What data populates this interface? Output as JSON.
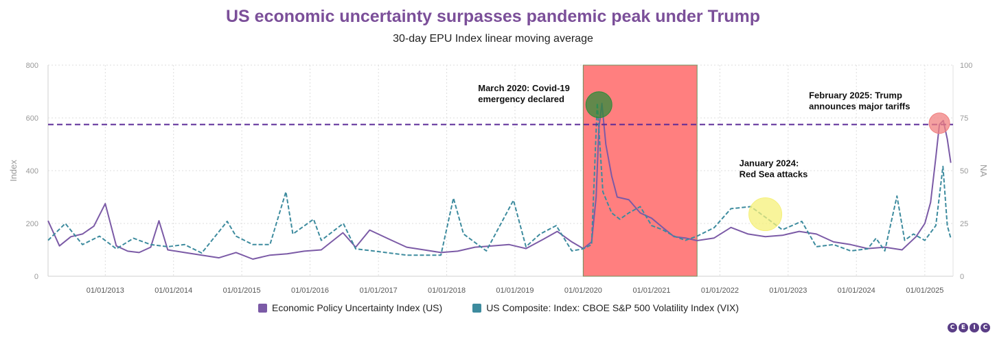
{
  "chart_data": {
    "type": "line",
    "title": "US economic uncertainty surpasses pandemic peak under Trump",
    "subtitle": "30-day EPU Index linear moving average",
    "ylabel": "Index",
    "y2label": "NA",
    "ylim": [
      0,
      800
    ],
    "y2lim": [
      0,
      100
    ],
    "yticks": [
      0,
      200,
      400,
      600,
      800
    ],
    "y2ticks": [
      0,
      25,
      50,
      75,
      100
    ],
    "xticks": [
      "01/01/2013",
      "01/01/2014",
      "01/01/2015",
      "01/01/2016",
      "01/01/2017",
      "01/01/2018",
      "01/01/2019",
      "01/01/2020",
      "01/01/2021",
      "01/01/2022",
      "01/01/2023",
      "01/01/2024",
      "01/01/2025"
    ],
    "grid": true,
    "legend_position": "bottom",
    "reference_line": {
      "value": 575,
      "color": "#5b2a96",
      "style": "dashed"
    },
    "shaded_period": {
      "start": "2020-01-01",
      "end": "2021-09-01",
      "color": "#ff7f7f"
    },
    "series": [
      {
        "name": "Economic Policy Uncertainty Index (US)",
        "axis": "left",
        "color": "#7b5aa6",
        "points": [
          [
            "2012-03-01",
            210
          ],
          [
            "2012-05-01",
            115
          ],
          [
            "2012-07-01",
            150
          ],
          [
            "2012-09-01",
            160
          ],
          [
            "2012-11-01",
            190
          ],
          [
            "2013-01-01",
            275
          ],
          [
            "2013-03-01",
            115
          ],
          [
            "2013-05-01",
            95
          ],
          [
            "2013-07-01",
            90
          ],
          [
            "2013-09-01",
            110
          ],
          [
            "2013-10-15",
            210
          ],
          [
            "2013-12-01",
            100
          ],
          [
            "2014-03-01",
            90
          ],
          [
            "2014-06-01",
            80
          ],
          [
            "2014-09-01",
            70
          ],
          [
            "2014-12-01",
            90
          ],
          [
            "2015-03-01",
            65
          ],
          [
            "2015-06-01",
            80
          ],
          [
            "2015-09-01",
            85
          ],
          [
            "2015-12-01",
            95
          ],
          [
            "2016-03-01",
            100
          ],
          [
            "2016-06-25",
            165
          ],
          [
            "2016-09-01",
            110
          ],
          [
            "2016-11-15",
            175
          ],
          [
            "2017-03-01",
            140
          ],
          [
            "2017-06-01",
            110
          ],
          [
            "2017-09-01",
            100
          ],
          [
            "2017-12-01",
            90
          ],
          [
            "2018-03-01",
            95
          ],
          [
            "2018-06-01",
            110
          ],
          [
            "2018-09-01",
            115
          ],
          [
            "2018-12-01",
            120
          ],
          [
            "2019-03-01",
            105
          ],
          [
            "2019-06-01",
            140
          ],
          [
            "2019-08-15",
            170
          ],
          [
            "2019-11-01",
            130
          ],
          [
            "2020-01-01",
            105
          ],
          [
            "2020-02-15",
            130
          ],
          [
            "2020-03-10",
            300
          ],
          [
            "2020-03-25",
            560
          ],
          [
            "2020-04-10",
            655
          ],
          [
            "2020-05-01",
            500
          ],
          [
            "2020-06-01",
            380
          ],
          [
            "2020-07-01",
            300
          ],
          [
            "2020-09-01",
            290
          ],
          [
            "2020-11-01",
            240
          ],
          [
            "2021-01-01",
            220
          ],
          [
            "2021-03-01",
            185
          ],
          [
            "2021-05-01",
            150
          ],
          [
            "2021-07-01",
            145
          ],
          [
            "2021-09-01",
            135
          ],
          [
            "2021-12-01",
            145
          ],
          [
            "2022-03-01",
            185
          ],
          [
            "2022-06-01",
            160
          ],
          [
            "2022-09-01",
            150
          ],
          [
            "2022-12-01",
            155
          ],
          [
            "2023-03-01",
            170
          ],
          [
            "2023-06-01",
            160
          ],
          [
            "2023-09-01",
            130
          ],
          [
            "2023-12-01",
            120
          ],
          [
            "2024-03-01",
            105
          ],
          [
            "2024-06-01",
            110
          ],
          [
            "2024-09-01",
            100
          ],
          [
            "2024-11-15",
            150
          ],
          [
            "2025-01-01",
            200
          ],
          [
            "2025-02-01",
            280
          ],
          [
            "2025-03-01",
            450
          ],
          [
            "2025-03-20",
            575
          ],
          [
            "2025-04-10",
            590
          ],
          [
            "2025-05-01",
            520
          ],
          [
            "2025-05-20",
            430
          ]
        ]
      },
      {
        "name": "US Composite: Index: CBOE S&P 500 Volatility Index (VIX)",
        "axis": "right",
        "color": "#3d8b9e",
        "points": [
          [
            "2012-03-01",
            17
          ],
          [
            "2012-06-01",
            25
          ],
          [
            "2012-09-01",
            15
          ],
          [
            "2012-12-01",
            19
          ],
          [
            "2013-03-01",
            13
          ],
          [
            "2013-06-01",
            18
          ],
          [
            "2013-09-01",
            15
          ],
          [
            "2013-12-01",
            14
          ],
          [
            "2014-03-01",
            15
          ],
          [
            "2014-06-01",
            11
          ],
          [
            "2014-10-15",
            26
          ],
          [
            "2014-12-01",
            19
          ],
          [
            "2015-03-01",
            15
          ],
          [
            "2015-06-01",
            15
          ],
          [
            "2015-08-25",
            40
          ],
          [
            "2015-10-01",
            20
          ],
          [
            "2016-01-20",
            27
          ],
          [
            "2016-03-01",
            17
          ],
          [
            "2016-06-27",
            25
          ],
          [
            "2016-09-01",
            13
          ],
          [
            "2016-12-01",
            12
          ],
          [
            "2017-03-01",
            11
          ],
          [
            "2017-06-01",
            10
          ],
          [
            "2017-09-01",
            10
          ],
          [
            "2017-12-01",
            10
          ],
          [
            "2018-02-06",
            37
          ],
          [
            "2018-04-01",
            20
          ],
          [
            "2018-08-01",
            12
          ],
          [
            "2018-12-24",
            36
          ],
          [
            "2019-03-01",
            14
          ],
          [
            "2019-05-15",
            20
          ],
          [
            "2019-08-10",
            24
          ],
          [
            "2019-11-01",
            12
          ],
          [
            "2020-01-01",
            13
          ],
          [
            "2020-02-15",
            15
          ],
          [
            "2020-03-16",
            82
          ],
          [
            "2020-04-15",
            40
          ],
          [
            "2020-06-01",
            30
          ],
          [
            "2020-07-15",
            27
          ],
          [
            "2020-09-01",
            30
          ],
          [
            "2020-11-01",
            33
          ],
          [
            "2021-01-01",
            24
          ],
          [
            "2021-03-01",
            22
          ],
          [
            "2021-05-01",
            19
          ],
          [
            "2021-07-01",
            17
          ],
          [
            "2021-09-01",
            19
          ],
          [
            "2021-12-01",
            23
          ],
          [
            "2022-03-01",
            32
          ],
          [
            "2022-06-15",
            33
          ],
          [
            "2022-09-01",
            28
          ],
          [
            "2022-12-01",
            22
          ],
          [
            "2023-03-15",
            26
          ],
          [
            "2023-06-01",
            14
          ],
          [
            "2023-09-01",
            15
          ],
          [
            "2023-12-01",
            12
          ],
          [
            "2024-03-01",
            13
          ],
          [
            "2024-04-15",
            18
          ],
          [
            "2024-06-01",
            12
          ],
          [
            "2024-08-05",
            38
          ],
          [
            "2024-09-15",
            17
          ],
          [
            "2024-11-01",
            20
          ],
          [
            "2025-01-01",
            17
          ],
          [
            "2025-03-01",
            24
          ],
          [
            "2025-04-08",
            52
          ],
          [
            "2025-05-01",
            24
          ],
          [
            "2025-05-20",
            18
          ]
        ]
      }
    ],
    "annotations": [
      {
        "text": [
          "March 2020: Covid-19",
          "emergency declared"
        ],
        "date": "2020-03-25",
        "value": 650,
        "color": "#2e8b3a"
      },
      {
        "text": [
          "January 2024:",
          "Red Sea attacks"
        ],
        "date": "2022-09-01",
        "value": 235,
        "color": "#f5f07a"
      },
      {
        "text": [
          "February 2025: Trump",
          "announces major tariffs"
        ],
        "date": "2025-03-20",
        "value": 580,
        "color": "#f08080"
      }
    ]
  },
  "legend": {
    "epu_label": "Economic Policy Uncertainty Index (US)",
    "vix_label": "US Composite: Index: CBOE S&P 500 Volatility Index (VIX)",
    "epu_color": "#7b5aa6",
    "vix_color": "#3d8b9e"
  },
  "brand": {
    "letters": [
      "C",
      "E",
      "I",
      "C"
    ]
  }
}
